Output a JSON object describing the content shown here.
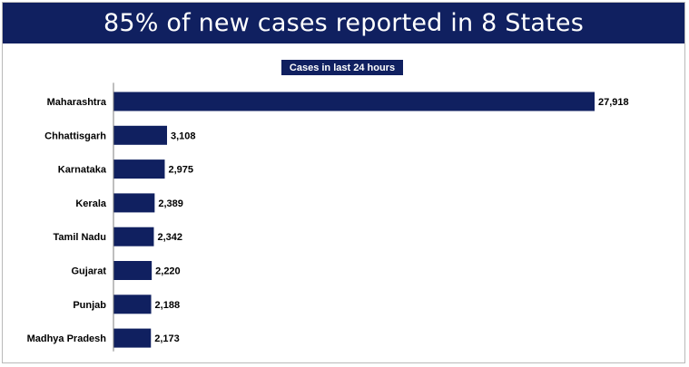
{
  "header": {
    "title": "85% of new cases reported in 8 States"
  },
  "colors": {
    "banner": "#102060",
    "bar": "#102060",
    "axis": "#7f7f7f"
  },
  "chart_data": {
    "type": "bar",
    "orientation": "horizontal",
    "title": "Cases in last 24 hours",
    "categories": [
      "Maharashtra",
      "Chhattisgarh",
      "Karnataka",
      "Kerala",
      "Tamil Nadu",
      "Gujarat",
      "Punjab",
      "Madhya Pradesh"
    ],
    "values": [
      27918,
      3108,
      2975,
      2389,
      2342,
      2220,
      2188,
      2173
    ],
    "value_labels": [
      "27,918",
      "3,108",
      "2,975",
      "2,389",
      "2,342",
      "2,220",
      "2,188",
      "2,173"
    ],
    "xlim": [
      0,
      27918
    ],
    "grid": false,
    "legend": "none"
  }
}
